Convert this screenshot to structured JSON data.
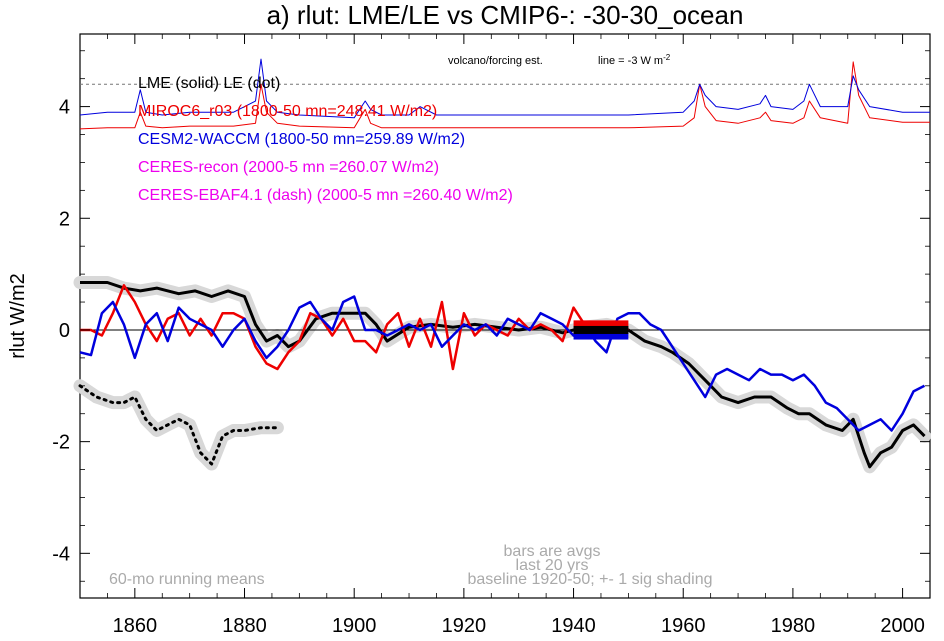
{
  "chart_data": {
    "type": "line",
    "title": "a) rlut: LME/LE vs CMIP6-: -30-30_ocean",
    "ylabel": "rlut W/m2",
    "xlabel": "",
    "xlim": [
      1850,
      2005
    ],
    "ylim": [
      -4.8,
      5.3
    ],
    "x_ticks": [
      "1860",
      "1880",
      "1900",
      "1920",
      "1940",
      "1960",
      "1980",
      "2000"
    ],
    "y_ticks": [
      "4",
      "2",
      "0",
      "-2",
      "-4"
    ],
    "legend": [
      {
        "text": "LME (solid)   LE (dot)",
        "color": "#000000"
      },
      {
        "text": "MIROC6_r03 (1800-50 mn=248.41 W/m2)",
        "color": "#ee0000"
      },
      {
        "text": "CESM2-WACCM (1800-50 mn=259.89 W/m2)",
        "color": "#0000dd"
      },
      {
        "text": "CERES-recon (2000-5 mn =260.07 W/m2)",
        "color": "#ee00ee"
      },
      {
        "text": "CERES-EBAF4.1 (dash) (2000-5 mn =260.40 W/m2)",
        "color": "#ee00ee"
      }
    ],
    "annotations": {
      "volcano": "volcano/forcing est.",
      "line_eq": "line = -3 W m",
      "line_sup": "-2",
      "note_left": "60-mo running means",
      "note_bars1": "bars are avgs",
      "note_bars2": "last 20 yrs",
      "note_baseline": "baseline 1920-50; +- 1 sig shading"
    },
    "reference_line": 4.4,
    "series": [
      {
        "key": "lme",
        "color": "#000000",
        "style": "solid-shaded",
        "x": [
          1850,
          1855,
          1858,
          1861,
          1864,
          1868,
          1871,
          1874,
          1877,
          1880,
          1882,
          1884,
          1886,
          1888,
          1890,
          1893,
          1896,
          1899,
          1902,
          1904,
          1906,
          1910,
          1914,
          1918,
          1922,
          1926,
          1930,
          1934,
          1938,
          1942,
          1946,
          1950,
          1953,
          1956,
          1958,
          1961,
          1964,
          1967,
          1970,
          1973,
          1976,
          1979,
          1981,
          1983,
          1986,
          1989,
          1991,
          1993,
          1994,
          1996,
          1998,
          2000,
          2002,
          2004
        ],
        "y": [
          0.85,
          0.85,
          0.75,
          0.7,
          0.75,
          0.65,
          0.7,
          0.6,
          0.7,
          0.6,
          0.1,
          -0.2,
          -0.1,
          -0.3,
          -0.2,
          0.2,
          0.3,
          0.3,
          0.3,
          0.1,
          -0.2,
          0.05,
          0.1,
          0.05,
          0.1,
          0.05,
          0.0,
          0.05,
          -0.05,
          0.05,
          0.1,
          0.0,
          -0.2,
          -0.3,
          -0.4,
          -0.6,
          -0.9,
          -1.2,
          -1.3,
          -1.2,
          -1.2,
          -1.4,
          -1.5,
          -1.5,
          -1.7,
          -1.8,
          -1.6,
          -2.2,
          -2.45,
          -2.2,
          -2.1,
          -1.8,
          -1.7,
          -1.9
        ]
      },
      {
        "key": "le",
        "color": "#000000",
        "style": "dotted-shaded",
        "x": [
          1850,
          1853,
          1856,
          1858,
          1860,
          1862,
          1864,
          1866,
          1868,
          1870,
          1872,
          1874,
          1876,
          1878,
          1880,
          1883,
          1886
        ],
        "y": [
          -1.0,
          -1.2,
          -1.3,
          -1.3,
          -1.2,
          -1.6,
          -1.8,
          -1.7,
          -1.6,
          -1.7,
          -2.2,
          -2.4,
          -1.9,
          -1.8,
          -1.8,
          -1.75,
          -1.75
        ]
      },
      {
        "key": "miroc_low",
        "color": "#ee0000",
        "style": "solid",
        "x": [
          1850,
          1852,
          1854,
          1856,
          1858,
          1860,
          1862,
          1864,
          1866,
          1868,
          1870,
          1872,
          1874,
          1876,
          1878,
          1880,
          1882,
          1884,
          1886,
          1888,
          1890,
          1892,
          1894,
          1896,
          1898,
          1900,
          1902,
          1904,
          1906,
          1908,
          1910,
          1912,
          1914,
          1916,
          1918,
          1920,
          1922,
          1924,
          1926,
          1928,
          1930,
          1932,
          1934,
          1936,
          1938,
          1940,
          1942,
          1944,
          1946,
          1948,
          1950
        ],
        "y": [
          0.0,
          0.0,
          -0.1,
          0.3,
          0.8,
          0.5,
          0.1,
          -0.2,
          0.2,
          0.3,
          -0.1,
          0.2,
          -0.1,
          0.3,
          0.3,
          0.2,
          -0.3,
          -0.6,
          -0.7,
          -0.4,
          -0.2,
          0.3,
          0.2,
          -0.1,
          0.2,
          -0.2,
          -0.2,
          -0.4,
          0.1,
          0.3,
          -0.3,
          0.2,
          -0.3,
          0.5,
          -0.7,
          0.3,
          -0.1,
          0.1,
          0.0,
          -0.1,
          0.2,
          0.0,
          0.1,
          0.0,
          -0.2,
          0.4,
          0.1,
          0.0,
          0.1,
          0.1,
          0.0
        ]
      },
      {
        "key": "cesm_low",
        "color": "#0000dd",
        "style": "solid",
        "x": [
          1850,
          1852,
          1854,
          1856,
          1858,
          1860,
          1862,
          1864,
          1866,
          1868,
          1870,
          1872,
          1874,
          1876,
          1878,
          1880,
          1882,
          1884,
          1886,
          1888,
          1890,
          1892,
          1894,
          1896,
          1898,
          1900,
          1902,
          1904,
          1906,
          1908,
          1910,
          1912,
          1914,
          1916,
          1918,
          1920,
          1922,
          1924,
          1926,
          1928,
          1930,
          1932,
          1934,
          1936,
          1938,
          1940,
          1942,
          1944,
          1946,
          1948,
          1950,
          1952,
          1954,
          1956,
          1958,
          1960,
          1962,
          1964,
          1966,
          1968,
          1970,
          1972,
          1974,
          1976,
          1978,
          1980,
          1982,
          1984,
          1986,
          1988,
          1990,
          1992,
          1994,
          1996,
          1998,
          2000,
          2002,
          2004
        ],
        "y": [
          -0.4,
          -0.45,
          0.3,
          0.5,
          0.1,
          -0.5,
          0.1,
          0.3,
          -0.2,
          0.4,
          0.2,
          0.1,
          0.0,
          -0.3,
          0.0,
          0.2,
          -0.2,
          -0.5,
          -0.3,
          0.0,
          0.4,
          0.5,
          0.2,
          0.0,
          0.5,
          0.6,
          0.0,
          0.0,
          -0.1,
          0.0,
          0.1,
          0.0,
          0.1,
          -0.3,
          -0.1,
          0.1,
          0.0,
          0.1,
          -0.1,
          0.2,
          0.1,
          0.0,
          0.3,
          0.2,
          0.1,
          -0.1,
          0.1,
          -0.2,
          -0.4,
          0.2,
          0.3,
          0.3,
          0.1,
          0.0,
          -0.3,
          -0.6,
          -0.9,
          -1.2,
          -0.8,
          -0.7,
          -0.8,
          -0.9,
          -0.7,
          -0.8,
          -0.8,
          -0.9,
          -0.8,
          -1.0,
          -1.3,
          -1.4,
          -1.6,
          -1.8,
          -1.7,
          -1.6,
          -1.8,
          -1.5,
          -1.1,
          -1.0
        ]
      },
      {
        "key": "miroc_top",
        "color": "#ee0000",
        "style": "thin",
        "x": [
          1850,
          1855,
          1860,
          1861,
          1862,
          1865,
          1870,
          1878,
          1882,
          1883,
          1884,
          1886,
          1890,
          1900,
          1902,
          1903,
          1905,
          1910,
          1920,
          1930,
          1940,
          1950,
          1960,
          1962,
          1963,
          1964,
          1966,
          1970,
          1974,
          1975,
          1976,
          1980,
          1982,
          1983,
          1985,
          1990,
          1991,
          1992,
          1994,
          2000,
          2005
        ],
        "y": [
          3.6,
          3.62,
          3.62,
          3.9,
          3.65,
          3.62,
          3.65,
          3.65,
          3.7,
          4.4,
          3.9,
          3.7,
          3.65,
          3.62,
          3.95,
          3.7,
          3.62,
          3.62,
          3.62,
          3.62,
          3.62,
          3.62,
          3.65,
          3.8,
          4.4,
          4.0,
          3.75,
          3.7,
          3.8,
          3.9,
          3.75,
          3.7,
          3.8,
          4.1,
          3.8,
          3.7,
          4.8,
          4.2,
          3.8,
          3.72,
          3.72
        ]
      },
      {
        "key": "cesm_top",
        "color": "#0000dd",
        "style": "thin",
        "x": [
          1850,
          1855,
          1860,
          1861,
          1862,
          1865,
          1870,
          1878,
          1882,
          1883,
          1884,
          1886,
          1890,
          1900,
          1902,
          1903,
          1905,
          1910,
          1912,
          1915,
          1920,
          1930,
          1940,
          1950,
          1960,
          1962,
          1963,
          1964,
          1966,
          1970,
          1974,
          1975,
          1976,
          1980,
          1982,
          1983,
          1985,
          1990,
          1991,
          1992,
          1994,
          2000,
          2005
        ],
        "y": [
          3.85,
          3.9,
          3.9,
          4.3,
          3.9,
          3.85,
          3.9,
          3.9,
          4.1,
          4.85,
          4.1,
          3.9,
          3.85,
          3.8,
          4.1,
          3.95,
          3.85,
          3.85,
          4.0,
          3.85,
          3.85,
          3.85,
          3.85,
          3.85,
          3.9,
          4.1,
          4.4,
          4.2,
          4.0,
          3.95,
          4.05,
          4.2,
          4.0,
          3.95,
          4.1,
          4.4,
          4.0,
          4.0,
          4.55,
          4.3,
          4.0,
          3.9,
          3.9
        ]
      }
    ],
    "bars": [
      {
        "color": "#ee0000",
        "x0": 1940,
        "x1": 1950,
        "y": 0.1
      },
      {
        "color": "#0000dd",
        "x0": 1940,
        "x1": 1950,
        "y": -0.1
      },
      {
        "color": "#000000",
        "x0": 1940,
        "x1": 1950,
        "y": 0.0
      }
    ]
  }
}
